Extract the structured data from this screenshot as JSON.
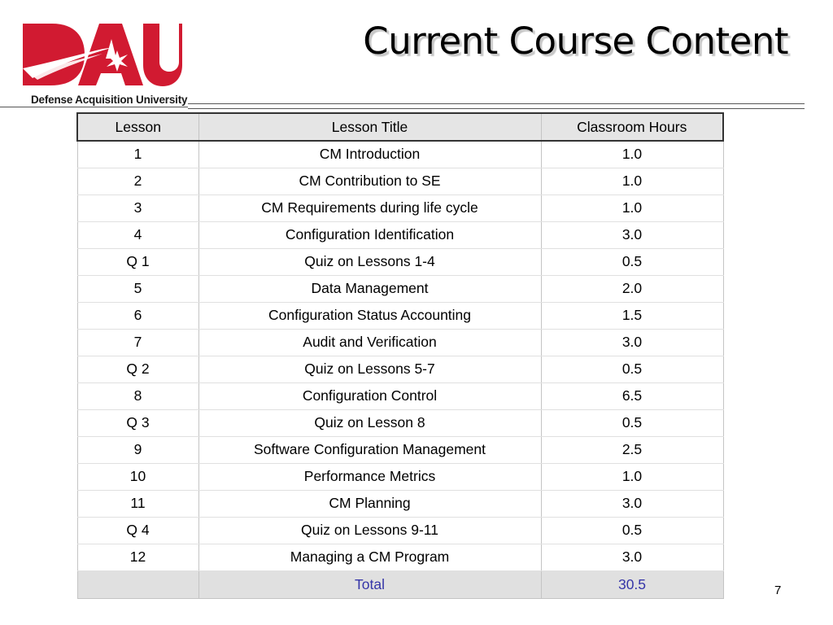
{
  "logo": {
    "brand_color": "#d11a31",
    "icon": "star-burst-icon",
    "caption": "Defense Acquisition University"
  },
  "title": "Current Course Content",
  "table": {
    "headers": [
      "Lesson",
      "Lesson Title",
      "Classroom Hours"
    ],
    "rows": [
      {
        "lesson": "1",
        "title": "CM Introduction",
        "hours": "1.0"
      },
      {
        "lesson": "2",
        "title": "CM Contribution to SE",
        "hours": "1.0"
      },
      {
        "lesson": "3",
        "title": "CM Requirements during life cycle",
        "hours": "1.0"
      },
      {
        "lesson": "4",
        "title": "Configuration Identification",
        "hours": "3.0"
      },
      {
        "lesson": "Q 1",
        "title": "Quiz on Lessons 1-4",
        "hours": "0.5"
      },
      {
        "lesson": "5",
        "title": "Data Management",
        "hours": "2.0"
      },
      {
        "lesson": "6",
        "title": "Configuration Status Accounting",
        "hours": "1.5"
      },
      {
        "lesson": "7",
        "title": "Audit and Verification",
        "hours": "3.0"
      },
      {
        "lesson": "Q 2",
        "title": "Quiz on Lessons 5-7",
        "hours": "0.5"
      },
      {
        "lesson": "8",
        "title": "Configuration Control",
        "hours": "6.5"
      },
      {
        "lesson": "Q 3",
        "title": "Quiz on Lesson 8",
        "hours": "0.5"
      },
      {
        "lesson": "9",
        "title": "Software Configuration Management",
        "hours": "2.5"
      },
      {
        "lesson": "10",
        "title": "Performance Metrics",
        "hours": "1.0"
      },
      {
        "lesson": "11",
        "title": "CM Planning",
        "hours": "3.0"
      },
      {
        "lesson": "Q 4",
        "title": "Quiz on Lessons 9-11",
        "hours": "0.5"
      },
      {
        "lesson": "12",
        "title": "Managing a CM Program",
        "hours": "3.0"
      }
    ],
    "footer": {
      "lesson": "",
      "title": "Total",
      "hours": "30.5"
    },
    "footer_text_color": "#3535a8"
  },
  "page_number": "7"
}
